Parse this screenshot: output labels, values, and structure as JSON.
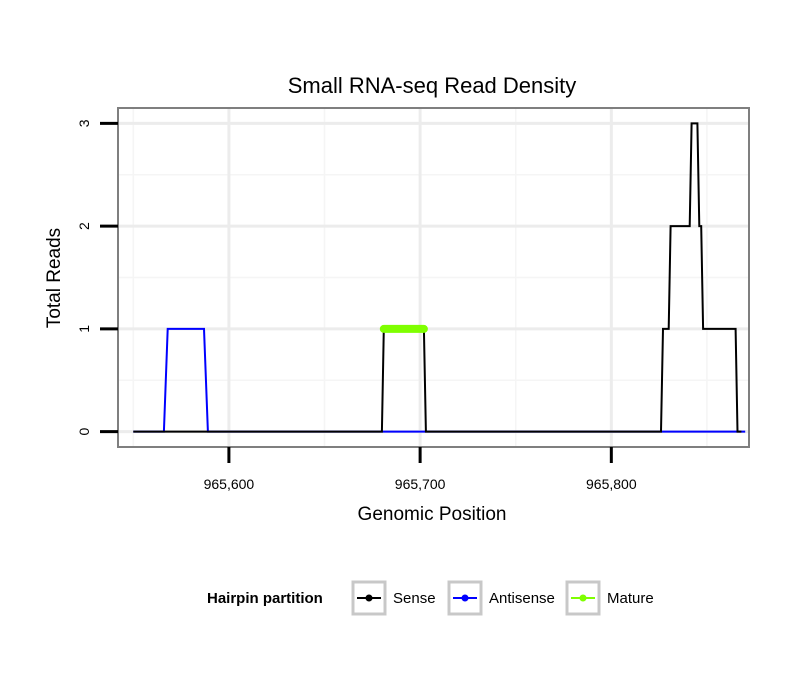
{
  "chart_data": {
    "type": "line",
    "title": "Small RNA-seq Read Density",
    "xlabel": "Genomic Position",
    "ylabel": "Total Reads",
    "xlim": [
      965542,
      965872
    ],
    "ylim": [
      -0.15,
      3.15
    ],
    "x_ticks": [
      965600,
      965700,
      965800
    ],
    "x_tick_labels": [
      "965,600",
      "965,700",
      "965,800"
    ],
    "y_ticks": [
      0,
      1,
      2,
      3
    ],
    "y_tick_labels": [
      "0",
      "1",
      "2",
      "3"
    ],
    "grid": true,
    "legend": {
      "title": "Hairpin partition",
      "position": "bottom",
      "entries": [
        "Sense",
        "Antisense",
        "Mature"
      ]
    },
    "series": [
      {
        "name": "Antisense",
        "color": "#0000ff",
        "points": [
          [
            965550,
            0
          ],
          [
            965566,
            0
          ],
          [
            965568,
            1
          ],
          [
            965587,
            1
          ],
          [
            965589,
            0
          ],
          [
            965870,
            0
          ]
        ]
      },
      {
        "name": "Sense",
        "color": "#000000",
        "points": [
          [
            965550,
            0
          ],
          [
            965680,
            0
          ],
          [
            965681,
            1
          ],
          [
            965702,
            1
          ],
          [
            965703,
            0
          ],
          [
            965826,
            0
          ],
          [
            965827,
            1
          ],
          [
            965830,
            1
          ],
          [
            965831,
            2
          ],
          [
            965841,
            2
          ],
          [
            965842,
            3
          ],
          [
            965845,
            3
          ],
          [
            965846,
            2
          ],
          [
            965847,
            2
          ],
          [
            965848,
            1
          ],
          [
            965865,
            1
          ],
          [
            965866,
            0
          ],
          [
            965868,
            0
          ]
        ]
      },
      {
        "name": "Mature",
        "color": "#7fff00",
        "points": [
          [
            965681,
            1
          ],
          [
            965702,
            1
          ]
        ]
      }
    ]
  }
}
